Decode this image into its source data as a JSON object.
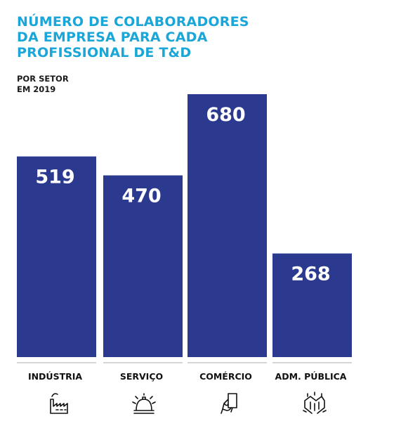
{
  "chart_data": {
    "type": "bar",
    "title": [
      "NÚMERO DE COLABORADORES",
      "DA EMPRESA PARA CADA",
      "PROFISSIONAL DE T&D"
    ],
    "subtitle": [
      "POR SETOR",
      "EM 2019"
    ],
    "categories": [
      "INDÚSTRIA",
      "SERVIÇO",
      "COMÉRCIO",
      "ADM. PÚBLICA"
    ],
    "values": [
      519,
      470,
      680,
      268
    ],
    "icons": [
      "factory-icon",
      "service-bell-icon",
      "hand-phone-icon",
      "handshake-group-icon"
    ],
    "ylim": [
      0,
      680
    ],
    "grid": false,
    "legend": "none"
  },
  "colors": {
    "title": "#1aa6d8",
    "bar": "#2b3a8f",
    "baseline": "#c9c9c9",
    "value_text": "#ffffff"
  }
}
